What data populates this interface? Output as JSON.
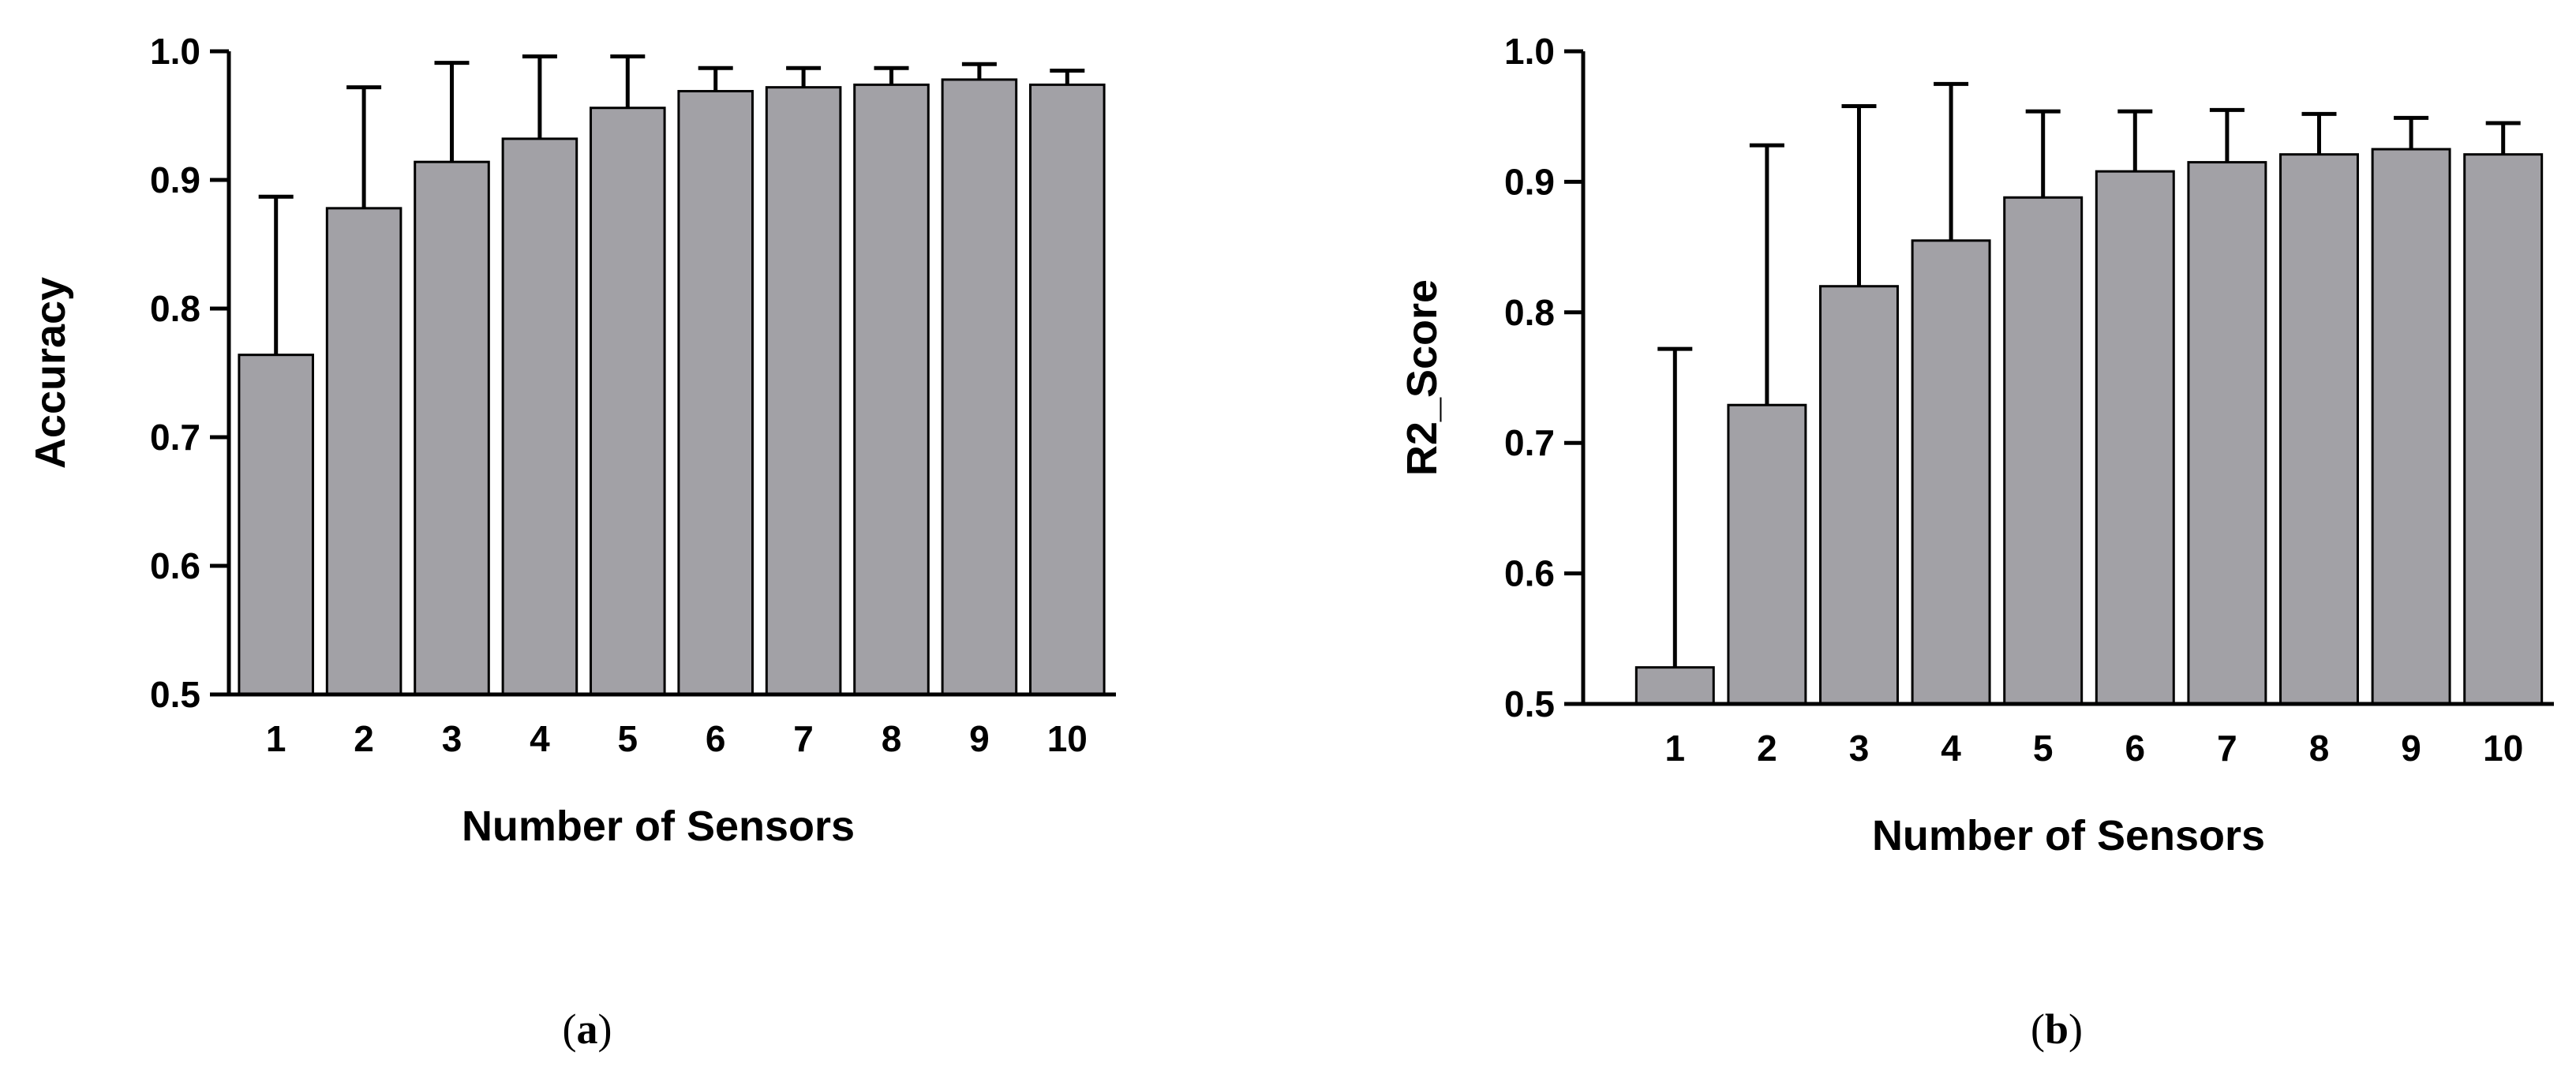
{
  "chart_data": [
    {
      "type": "bar",
      "categories": [
        "1",
        "2",
        "3",
        "4",
        "5",
        "6",
        "7",
        "8",
        "9",
        "10"
      ],
      "values": [
        0.764,
        0.878,
        0.914,
        0.932,
        0.956,
        0.969,
        0.972,
        0.974,
        0.978,
        0.974
      ],
      "error_upper": [
        0.887,
        0.972,
        0.991,
        0.996,
        0.996,
        0.987,
        0.987,
        0.987,
        0.99,
        0.985
      ],
      "xlabel": "Number of Sensors",
      "ylabel": "Accuracy",
      "ylim": [
        0.5,
        1.0
      ],
      "yticks": [
        "0.5",
        "0.6",
        "0.7",
        "0.8",
        "0.9",
        "1.0"
      ],
      "bar_color": "#a2a1a6",
      "panel_label": "a"
    },
    {
      "type": "bar",
      "categories": [
        "1",
        "2",
        "3",
        "4",
        "5",
        "6",
        "7",
        "8",
        "9",
        "10"
      ],
      "values": [
        0.528,
        0.729,
        0.82,
        0.855,
        0.888,
        0.908,
        0.915,
        0.921,
        0.925,
        0.921
      ],
      "error_upper": [
        0.772,
        0.928,
        0.958,
        0.975,
        0.954,
        0.954,
        0.955,
        0.952,
        0.949,
        0.945
      ],
      "xlabel": "Number of Sensors",
      "ylabel": "R2_Score",
      "ylim": [
        0.5,
        1.0
      ],
      "yticks": [
        "0.5",
        "0.6",
        "0.7",
        "0.8",
        "0.9",
        "1.0"
      ],
      "bar_color": "#a2a1a6",
      "panel_label": "b"
    }
  ]
}
